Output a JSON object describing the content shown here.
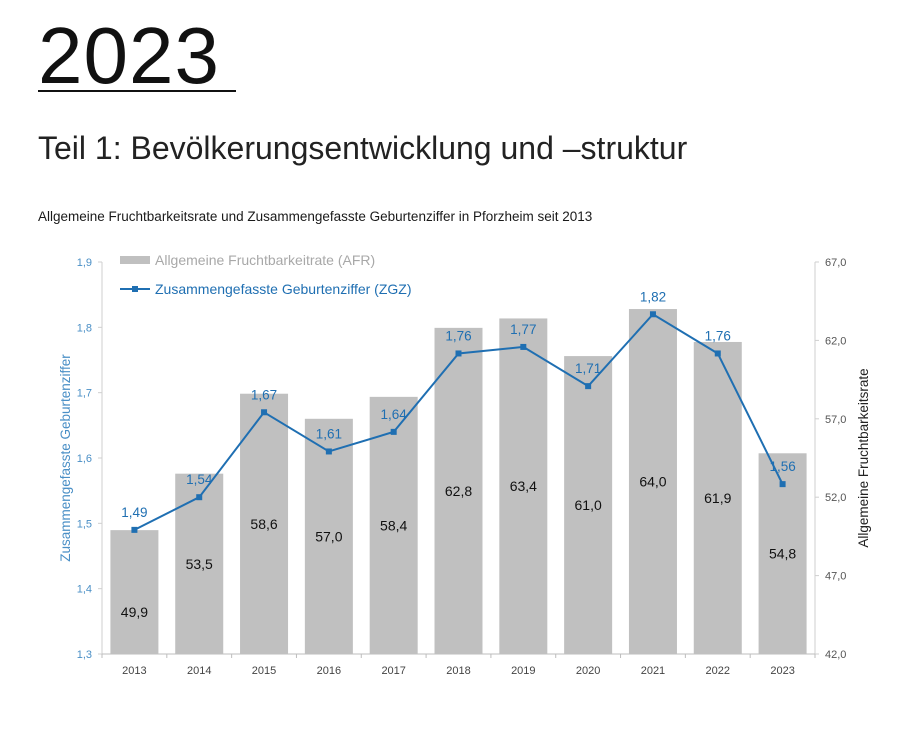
{
  "page": {
    "year_heading": "2023",
    "section_heading": "Teil 1: Bevölkerungsentwicklung und –struktur",
    "chart_caption": "Allgemeine Fruchtbarkeitsrate und Zusammengefasste Geburtenziffer in Pforzheim seit 2013"
  },
  "colors": {
    "bar": "#c0c0c0",
    "line": "#1f6fb2",
    "left_axis_text": "#4a8fc6",
    "right_axis_text": "#555555",
    "grid": "#e8e8e8"
  },
  "chart_data": {
    "type": "bar+line",
    "title": "Allgemeine Fruchtbarkeitsrate und Zusammengefasste Geburtenziffer in Pforzheim seit 2013",
    "categories": [
      "2013",
      "2014",
      "2015",
      "2016",
      "2017",
      "2018",
      "2019",
      "2020",
      "2021",
      "2022",
      "2023"
    ],
    "series": [
      {
        "name": "Allgemeine Fruchtbarkeitrate (AFR)",
        "type": "bar",
        "axis": "right",
        "values": [
          49.9,
          53.5,
          58.6,
          57.0,
          58.4,
          62.8,
          63.4,
          61.0,
          64.0,
          61.9,
          54.8
        ],
        "labels": [
          "49,9",
          "53,5",
          "58,6",
          "57,0",
          "58,4",
          "62,8",
          "63,4",
          "61,0",
          "64,0",
          "61,9",
          "54,8"
        ]
      },
      {
        "name": "Zusammengefasste Geburtenziffer (ZGZ)",
        "type": "line",
        "axis": "left",
        "values": [
          1.49,
          1.54,
          1.67,
          1.61,
          1.64,
          1.76,
          1.77,
          1.71,
          1.82,
          1.76,
          1.56
        ],
        "labels": [
          "1,49",
          "1,54",
          "1,67",
          "1,61",
          "1,64",
          "1,76",
          "1,77",
          "1,71",
          "1,82",
          "1,76",
          "1,56"
        ]
      }
    ],
    "left_axis": {
      "label": "Zusammengefasste Geburtenziffer",
      "range": [
        1.3,
        1.9
      ],
      "ticks": [
        1.3,
        1.4,
        1.5,
        1.6,
        1.7,
        1.8,
        1.9
      ],
      "tick_labels": [
        "1,3",
        "1,4",
        "1,5",
        "1,6",
        "1,7",
        "1,8",
        "1,9"
      ]
    },
    "right_axis": {
      "label": "Allgemeine Fruchtbarkeitsrate",
      "range": [
        42.0,
        67.0
      ],
      "ticks": [
        42.0,
        47.0,
        52.0,
        57.0,
        62.0,
        67.0
      ],
      "tick_labels": [
        "42,0",
        "47,0",
        "52,0",
        "57,0",
        "62,0",
        "67,0"
      ]
    },
    "legend_position": "top-left",
    "grid": false
  }
}
